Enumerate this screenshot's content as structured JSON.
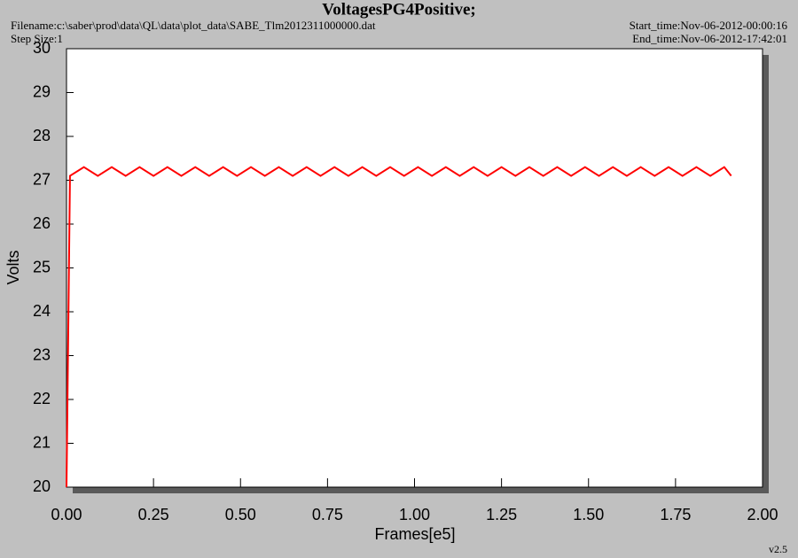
{
  "chart_data": {
    "type": "line",
    "title": "VoltagesPG4Positive;",
    "filename": "Filename:c:\\saber\\prod\\data\\QL\\data\\plot_data\\SABE_Tlm2012311000000.dat",
    "step_size": "Step Size:1",
    "start_time": "Start_time:Nov-06-2012-00:00:16",
    "end_time": "End_time:Nov-06-2012-17:42:01",
    "version": "v2.5",
    "xlabel": "Frames[e5]",
    "ylabel": "Volts",
    "color": "#ff0000",
    "x": [
      0,
      0.01,
      0.05,
      0.09,
      0.13,
      0.17,
      0.21,
      0.25,
      0.29,
      0.33,
      0.37,
      0.41,
      0.45,
      0.49,
      0.53,
      0.57,
      0.61,
      0.65,
      0.69,
      0.73,
      0.77,
      0.81,
      0.85,
      0.89,
      0.93,
      0.97,
      1.01,
      1.05,
      1.09,
      1.13,
      1.17,
      1.21,
      1.25,
      1.29,
      1.33,
      1.37,
      1.41,
      1.45,
      1.49,
      1.53,
      1.57,
      1.61,
      1.65,
      1.69,
      1.73,
      1.77,
      1.81,
      1.85,
      1.89,
      1.91
    ],
    "values": [
      20,
      27.1,
      27.3,
      27.1,
      27.3,
      27.1,
      27.3,
      27.1,
      27.3,
      27.1,
      27.3,
      27.1,
      27.3,
      27.1,
      27.3,
      27.1,
      27.3,
      27.1,
      27.3,
      27.1,
      27.3,
      27.1,
      27.3,
      27.1,
      27.3,
      27.1,
      27.3,
      27.1,
      27.3,
      27.1,
      27.3,
      27.1,
      27.3,
      27.1,
      27.3,
      27.1,
      27.3,
      27.1,
      27.3,
      27.1,
      27.3,
      27.1,
      27.3,
      27.1,
      27.3,
      27.1,
      27.3,
      27.1,
      27.3,
      27.1
    ],
    "xlim": [
      0,
      2
    ],
    "ylim": [
      20,
      30
    ],
    "xticks": [
      {
        "value": 0,
        "label": "0.00"
      },
      {
        "value": 0.25,
        "label": "0.25"
      },
      {
        "value": 0.5,
        "label": "0.50"
      },
      {
        "value": 0.75,
        "label": "0.75"
      },
      {
        "value": 1,
        "label": "1.00"
      },
      {
        "value": 1.25,
        "label": "1.25"
      },
      {
        "value": 1.5,
        "label": "1.50"
      },
      {
        "value": 1.75,
        "label": "1.75"
      },
      {
        "value": 2,
        "label": "2.00"
      }
    ],
    "yticks": [
      20,
      21,
      22,
      23,
      24,
      25,
      26,
      27,
      28,
      29,
      30
    ]
  }
}
